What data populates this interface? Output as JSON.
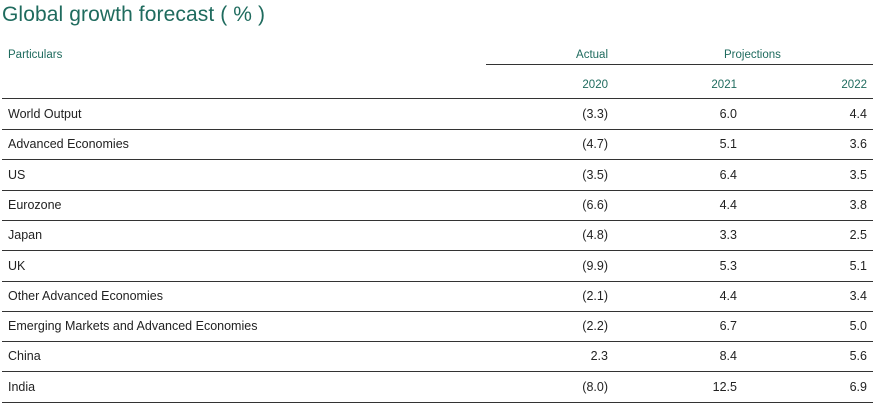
{
  "title": "Global growth forecast ( % )",
  "header": {
    "particulars": "Particulars",
    "actual": "Actual",
    "projections": "Projections",
    "years": [
      "2020",
      "2021",
      "2022"
    ]
  },
  "rows": [
    {
      "label": "World Output",
      "v2020": "(3.3)",
      "v2021": "6.0",
      "v2022": "4.4"
    },
    {
      "label": "Advanced Economies",
      "v2020": "(4.7)",
      "v2021": "5.1",
      "v2022": "3.6"
    },
    {
      "label": "US",
      "v2020": "(3.5)",
      "v2021": "6.4",
      "v2022": "3.5"
    },
    {
      "label": "Eurozone",
      "v2020": "(6.6)",
      "v2021": "4.4",
      "v2022": "3.8"
    },
    {
      "label": "Japan",
      "v2020": "(4.8)",
      "v2021": "3.3",
      "v2022": "2.5"
    },
    {
      "label": "UK",
      "v2020": "(9.9)",
      "v2021": "5.3",
      "v2022": "5.1"
    },
    {
      "label": "Other Advanced Economies",
      "v2020": "(2.1)",
      "v2021": "4.4",
      "v2022": "3.4"
    },
    {
      "label": "Emerging Markets and Advanced Economies",
      "v2020": "(2.2)",
      "v2021": "6.7",
      "v2022": "5.0"
    },
    {
      "label": "China",
      "v2020": "2.3",
      "v2021": "8.4",
      "v2022": "5.6"
    },
    {
      "label": "India",
      "v2020": "(8.0)",
      "v2021": "12.5",
      "v2022": "6.9"
    }
  ]
}
